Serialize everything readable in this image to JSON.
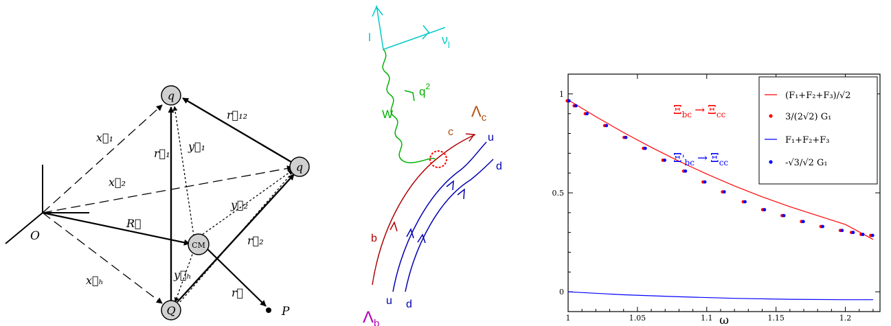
{
  "vectors": {
    "x1": "x⃗₁",
    "x2": "x⃗₂",
    "xh": "x⃗ₕ",
    "R": "R⃗",
    "r1": "r⃗₁",
    "r12": "r⃗₁₂",
    "y1": "y⃗₁",
    "y2": "y⃗₂",
    "yh": "y⃗ₕ",
    "r2": "r⃗₂",
    "r": "r⃗"
  },
  "points": {
    "O": "O",
    "P": "P",
    "q_top": "q",
    "q_right": "q",
    "Q": "Q",
    "CM": "CM"
  },
  "feynman": {
    "lepton": "l",
    "neutrino": "ν",
    "neutrino_sub": "l",
    "boson": "W",
    "q2": "q",
    "q2_sup": "2",
    "Lambda_c": "Λ",
    "Lambda_c_sub": "c",
    "Lambda_b": "Λ",
    "Lambda_b_sub": "b",
    "b": "b",
    "c": "c",
    "u_top": "u",
    "d_top": "d",
    "u_bottom": "u",
    "d_bottom": "d",
    "colors": {
      "lepton": "#00c8c8",
      "boson": "#00b000",
      "heavy": "#b00000",
      "light": "#0000b0",
      "lambda_c": "#b05010",
      "lambda_b": "#b000b0"
    }
  },
  "chart_data": {
    "type": "line",
    "xlabel": "ω",
    "ylabel": "",
    "xlim": [
      1.0,
      1.225
    ],
    "ylim": [
      -0.1,
      1.1
    ],
    "xticks": [
      "1",
      "1.05",
      "1.1",
      "1.15",
      "1.2"
    ],
    "yticks": [
      "0",
      "0.5",
      "1"
    ],
    "xtick_values": [
      1.0,
      1.05,
      1.1,
      1.15,
      1.2
    ],
    "ytick_values": [
      0,
      0.5,
      1
    ],
    "annotations": [
      {
        "text_main": "Ξ",
        "text_sub": "bc",
        "arrow": "→",
        "text_main2": "Ξ",
        "text_sub2": "cc",
        "color": "#ff0000"
      },
      {
        "text_main": "Ξ",
        "text_sub": "bc",
        "prime": "'",
        "arrow": "→",
        "text_main2": "Ξ",
        "text_sub2": "cc",
        "color": "#0000ff"
      }
    ],
    "legend": {
      "placement": "top-right",
      "entries": [
        {
          "label": "(F₁+F₂+F₃)/√2",
          "style": "line",
          "color": "#ff0000"
        },
        {
          "label": "3/(2√2) G₁",
          "style": "dot",
          "color": "#ff0000"
        },
        {
          "label": "F₁+F₂+F₃",
          "style": "line",
          "color": "#0000ff"
        },
        {
          "label": "-√3/√2 G₁",
          "style": "dot",
          "color": "#0000ff"
        }
      ]
    },
    "series": [
      {
        "name": "(F₁+F₂+F₃)/√2",
        "style": "line",
        "color": "#ff0000",
        "x": [
          1.0,
          1.02,
          1.04,
          1.06,
          1.08,
          1.1,
          1.12,
          1.14,
          1.16,
          1.18,
          1.2,
          1.22
        ],
        "y": [
          0.97,
          0.885,
          0.805,
          0.73,
          0.66,
          0.595,
          0.535,
          0.48,
          0.43,
          0.385,
          0.34,
          0.265
        ]
      },
      {
        "name": "3/(2√2) G₁",
        "style": "dot",
        "color": "#ff0000",
        "x": [
          1.0,
          1.005,
          1.013,
          1.027,
          1.041,
          1.055,
          1.069,
          1.084,
          1.098,
          1.112,
          1.127,
          1.141,
          1.155,
          1.169,
          1.183,
          1.197,
          1.205,
          1.212,
          1.219
        ],
        "y": [
          0.965,
          0.94,
          0.9,
          0.84,
          0.78,
          0.725,
          0.665,
          0.61,
          0.555,
          0.505,
          0.455,
          0.415,
          0.385,
          0.355,
          0.33,
          0.31,
          0.3,
          0.29,
          0.285
        ]
      },
      {
        "name": "F₁+F₂+F₃",
        "style": "line",
        "color": "#0000ff",
        "x": [
          1.0,
          1.04,
          1.08,
          1.12,
          1.16,
          1.2,
          1.22
        ],
        "y": [
          0.0,
          -0.015,
          -0.025,
          -0.033,
          -0.038,
          -0.04,
          -0.04
        ]
      },
      {
        "name": "-√3/√2 G₁",
        "style": "dot",
        "color": "#0000ff",
        "x": [
          1.0,
          1.005,
          1.013,
          1.027,
          1.041,
          1.055,
          1.069,
          1.084,
          1.098,
          1.112,
          1.127,
          1.141,
          1.155,
          1.169,
          1.183,
          1.197,
          1.205,
          1.212,
          1.219
        ],
        "y": [
          0.965,
          0.94,
          0.9,
          0.84,
          0.78,
          0.725,
          0.665,
          0.61,
          0.555,
          0.505,
          0.455,
          0.415,
          0.385,
          0.355,
          0.33,
          0.31,
          0.3,
          0.29,
          0.285
        ]
      }
    ]
  }
}
